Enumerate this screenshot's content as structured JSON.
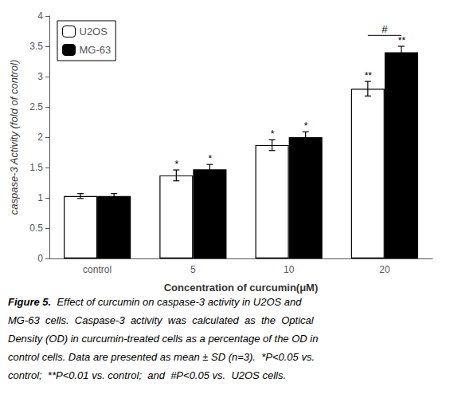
{
  "chart_data": {
    "type": "bar",
    "categories": [
      "control",
      "5",
      "10",
      "20"
    ],
    "series": [
      {
        "name": "U2OS",
        "color": "white",
        "values": [
          1.03,
          1.37,
          1.87,
          2.8
        ],
        "errors": [
          0.04,
          0.09,
          0.09,
          0.12
        ],
        "significance": [
          null,
          "*",
          "*",
          "**"
        ]
      },
      {
        "name": "MG-63",
        "color": "black",
        "values": [
          1.03,
          1.47,
          2.0,
          3.4
        ],
        "errors": [
          0.04,
          0.08,
          0.09,
          0.1
        ],
        "significance": [
          null,
          "*",
          "*",
          "**"
        ]
      }
    ],
    "xlabel": "Concentration of curcumin(μM)",
    "ylabel": "caspase-3 Activity (fold of control)",
    "ylim": [
      0,
      4.0
    ],
    "yticks": [
      0,
      0.5,
      1,
      1.5,
      2,
      2.5,
      3,
      3.5,
      4
    ],
    "grid": false,
    "legend": "upper left",
    "annotations": [
      {
        "text": "#",
        "category": "20",
        "between": [
          "U2OS",
          "MG-63"
        ],
        "y": 3.68
      }
    ],
    "caption": [
      "Figure 5.  Effect of curcumin on caspase-3 activity in U2OS and",
      "MG-63  cells.  Caspase-3  activity  was  calculated  as  the  Optical",
      "Density (OD) in curcumin-treated cells as a percentage of the OD in",
      "control cells. Data are presented as mean ± SD (n=3).  *P<0.05 vs.",
      "control;  **P<0.01 vs. control;  and  #P<0.05 vs.  U2OS cells."
    ]
  }
}
